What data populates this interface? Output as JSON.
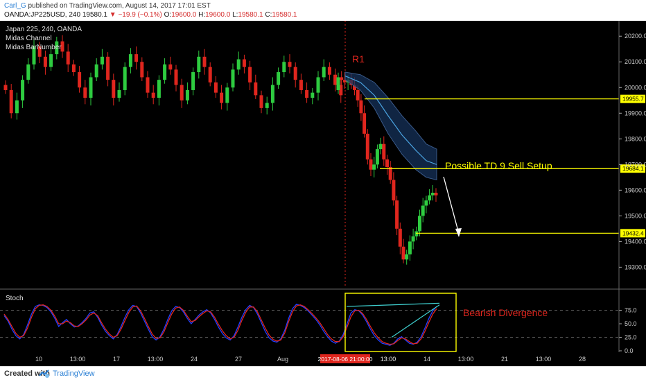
{
  "header": {
    "user": "Carl_G",
    "published": "published on TradingView.com, August 14, 2017 17:01 EST",
    "symbol": "OANDA:JP225USD, 240",
    "last": "19580.1",
    "change": "−19.9 (−0.1%)",
    "o_label": "O:",
    "o_value": "19600.0",
    "h_label": "H:",
    "h_value": "19600.0",
    "l_label": "L:",
    "l_value": "19580.1",
    "c_label": "C:",
    "c_value": "19580.1"
  },
  "legend": {
    "title": "Japan 225, 240, OANDA",
    "studies": [
      "Midas Channel",
      "Midas BarNumber"
    ]
  },
  "annotations": {
    "r1": "R1",
    "setup": "Possible TD 9 Sell Setup",
    "divergence": "Bearish Divergence"
  },
  "stoch_label": "Stoch",
  "footer": {
    "created": "Created with",
    "brand": "TradingView"
  },
  "colors": {
    "background": "#000000",
    "up": "#2ecc40",
    "down": "#e0261e",
    "level": "#ffff00",
    "stoch_k": "#1f3fff",
    "stoch_d": "#e0261e",
    "channel": "#4aa3e0"
  },
  "chart_data": [
    {
      "type": "candlestick",
      "ylim": [
        19220,
        20260
      ],
      "y_ticks": [
        20200.0,
        20100.0,
        20000.0,
        19900.0,
        19800.0,
        19700.0,
        19600.0,
        19500.0,
        19400.0,
        19300.0
      ],
      "x_ticks": [
        "10",
        "13:00",
        "17",
        "13:00",
        "24",
        "27",
        "Aug",
        "13:00",
        "13:00",
        "14",
        "13:00",
        "21",
        "13:00",
        "28"
      ],
      "x_highlight": "2017-08-06 21:00:00",
      "levels": [
        {
          "label": "19955.7",
          "value": 19955.7
        },
        {
          "label": "19684.1",
          "value": 19684.1
        },
        {
          "label": "19432.4",
          "value": 19432.4
        }
      ],
      "closes_early": [
        19990,
        19900,
        19950,
        20030,
        20090,
        20160,
        20120,
        20080,
        20130,
        20180,
        20140,
        20090,
        20060,
        20000,
        19960,
        20040,
        20090,
        20120,
        20030,
        19960,
        19990,
        20080,
        20130,
        20100,
        20040,
        19980,
        19960,
        20030,
        20090,
        20070,
        20010,
        19950,
        19990,
        20060,
        20120,
        20080,
        20020,
        19980,
        19940,
        20000,
        20070,
        20110,
        20080,
        20020,
        19970,
        19920,
        19940,
        20010,
        20060,
        20100,
        20080,
        20030,
        19990,
        19960,
        19980,
        20040,
        20080,
        20050,
        20010,
        19970
      ],
      "closes_late": [
        20040,
        20030,
        20020,
        20030,
        20010,
        19990,
        19950,
        19900,
        19820,
        19720,
        19680,
        19700,
        19760,
        19780,
        19720,
        19690,
        19640,
        19560,
        19450,
        19380,
        19330,
        19350,
        19400,
        19420,
        19440,
        19500,
        19540,
        19560,
        19580,
        19590,
        19580
      ]
    },
    {
      "type": "line",
      "title": "Stoch",
      "ylim": [
        0,
        100
      ],
      "y_ticks": [
        75.0,
        50.0,
        25.0,
        0.0
      ],
      "series": [
        {
          "values": [
            65,
            55,
            40,
            28,
            22,
            30,
            48,
            68,
            82,
            85,
            84,
            80,
            72,
            60,
            45,
            52,
            58,
            50,
            44,
            46,
            52,
            60,
            70,
            72,
            62,
            48,
            36,
            28,
            22,
            30,
            45,
            62,
            76,
            84,
            82,
            70,
            55,
            40,
            26,
            20,
            26,
            40,
            58,
            74,
            82,
            80,
            72,
            60,
            50,
            58,
            66,
            72,
            76,
            70,
            58,
            44,
            32,
            24,
            20,
            28,
            44,
            62,
            76,
            84,
            80,
            68,
            52,
            36,
            24,
            18,
            16,
            22,
            38,
            60,
            78,
            86,
            84,
            80,
            74,
            66,
            58,
            48,
            36,
            26,
            18,
            14,
            18,
            30,
            50,
            70,
            76,
            74,
            66,
            54,
            40,
            28,
            20,
            14,
            12,
            10,
            14,
            22,
            26,
            20,
            14,
            12,
            16,
            26,
            42,
            60,
            74,
            82
          ]
        },
        {
          "values": [
            68,
            58,
            45,
            32,
            25,
            28,
            42,
            62,
            78,
            84,
            85,
            82,
            75,
            64,
            50,
            50,
            55,
            52,
            46,
            45,
            50,
            57,
            66,
            70,
            65,
            52,
            40,
            31,
            25,
            28,
            40,
            56,
            71,
            81,
            83,
            74,
            60,
            45,
            31,
            23,
            24,
            35,
            52,
            68,
            79,
            81,
            75,
            64,
            54,
            56,
            63,
            69,
            74,
            72,
            62,
            49,
            37,
            28,
            22,
            25,
            38,
            56,
            71,
            81,
            81,
            72,
            57,
            42,
            29,
            21,
            18,
            20,
            33,
            54,
            72,
            83,
            85,
            82,
            76,
            69,
            61,
            52,
            41,
            30,
            22,
            17,
            17,
            26,
            44,
            63,
            74,
            75,
            69,
            58,
            45,
            33,
            24,
            17,
            14,
            12,
            13,
            19,
            24,
            22,
            17,
            13,
            14,
            22,
            36,
            53,
            68,
            78
          ]
        }
      ]
    }
  ]
}
